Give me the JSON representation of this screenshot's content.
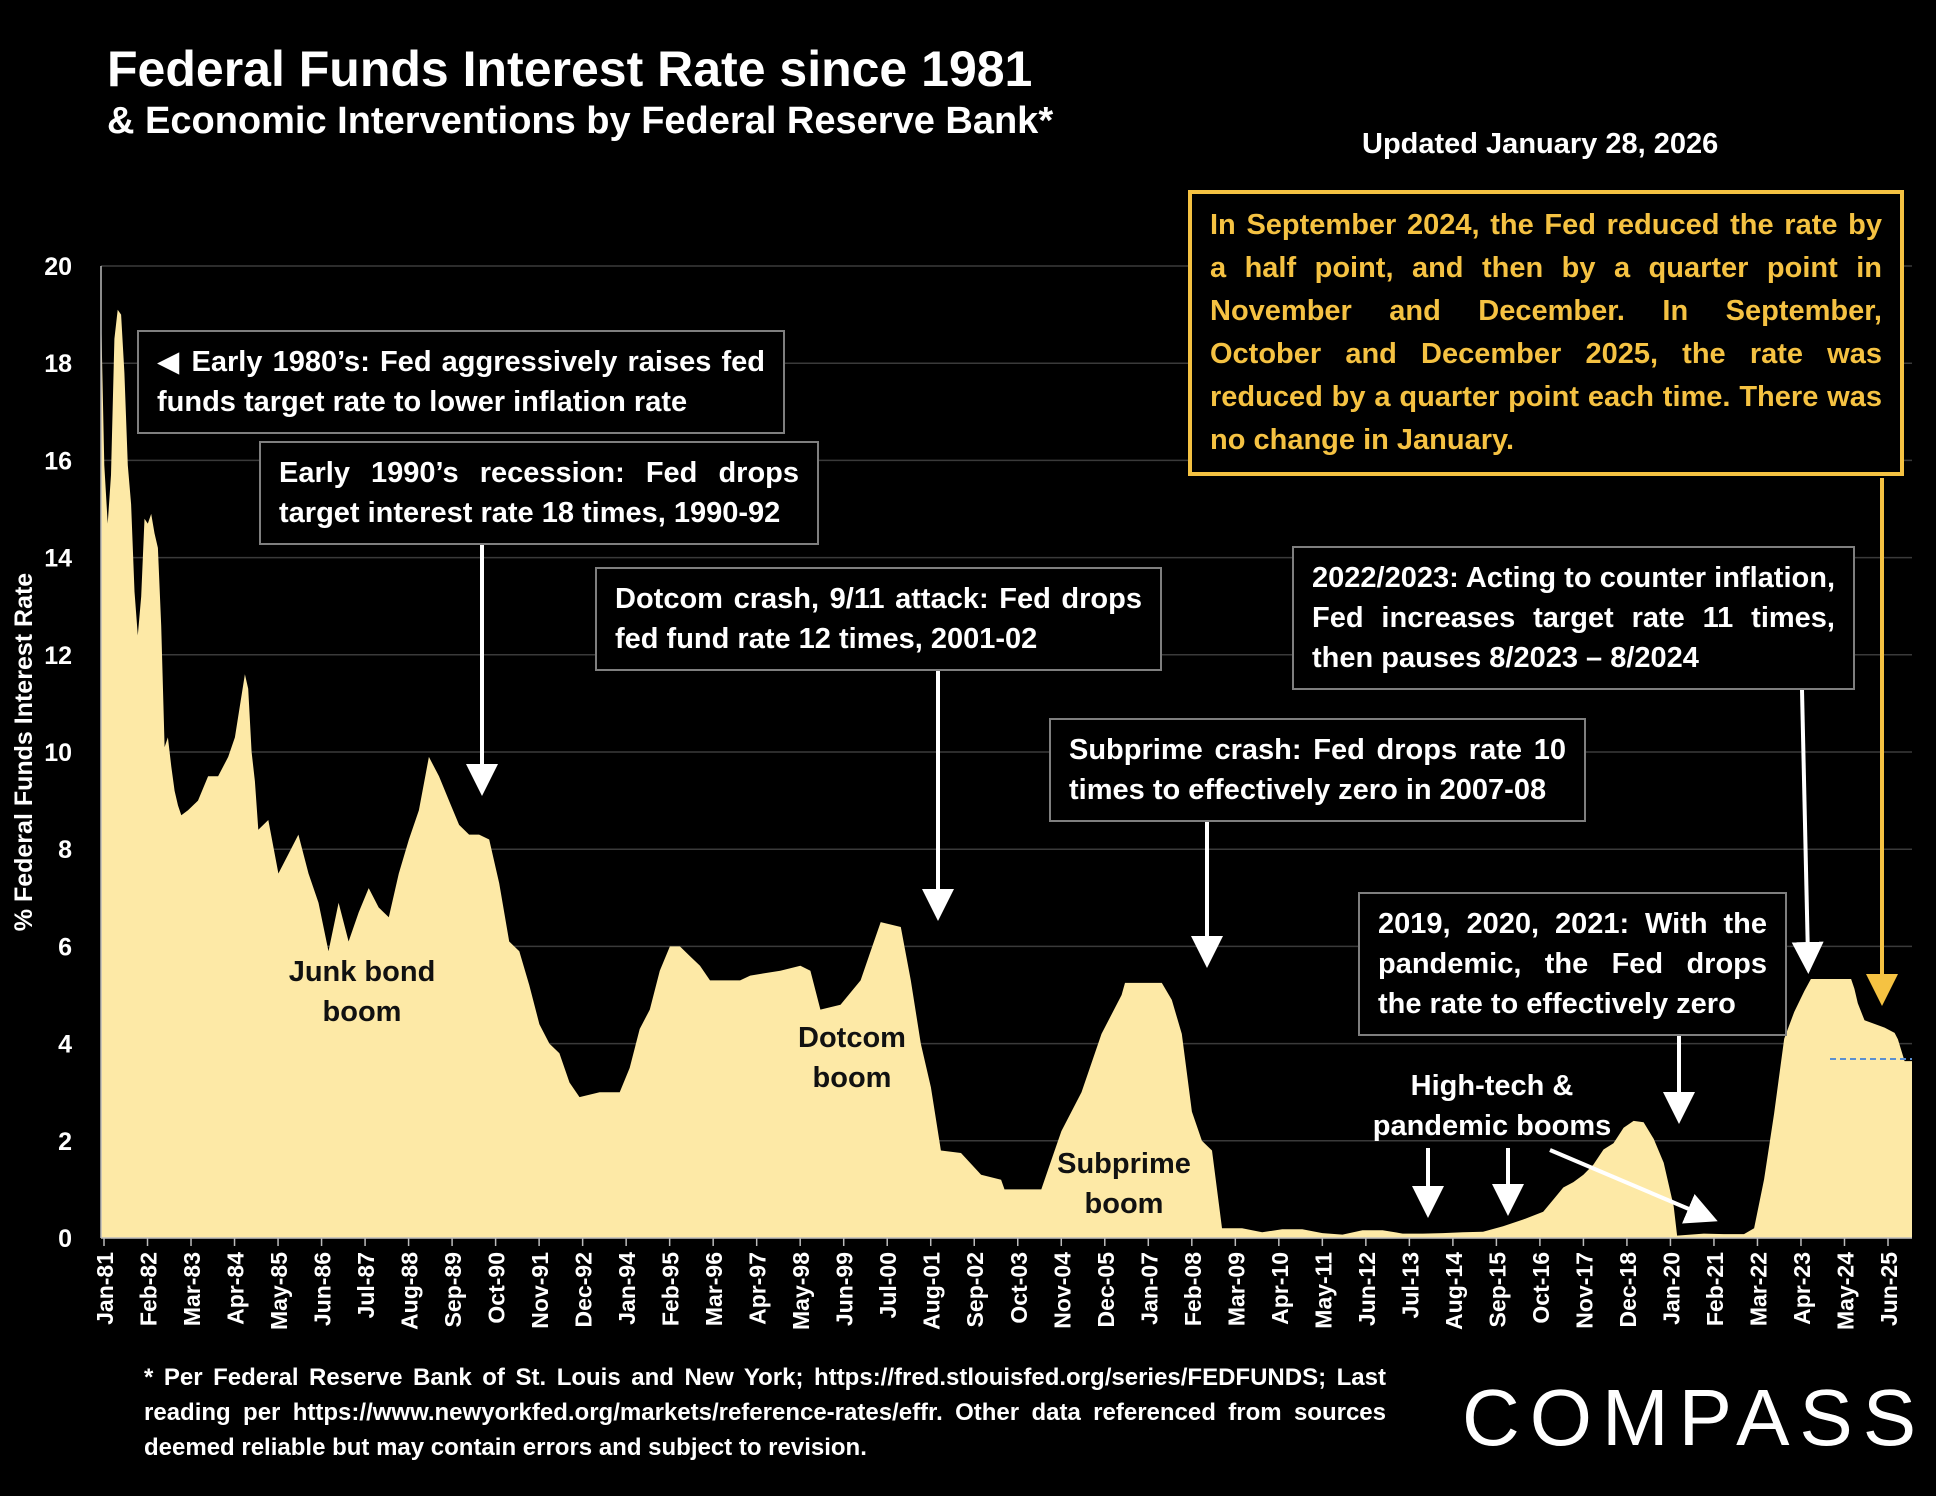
{
  "title": "Federal Funds Interest Rate since 1981",
  "subtitle": "& Economic Interventions by Federal Reserve Bank*",
  "updated": "Updated January 28, 2026",
  "ylabel": "% Federal Funds Interest Rate",
  "callouts": {
    "early80s": "◀ Early 1980’s: Fed aggressively raises fed funds target rate to lower inflation rate",
    "early90s": "Early 1990’s recession: Fed drops target interest rate 18 times, 1990-92",
    "dotcom": "Dotcom crash, 9/11 attack: Fed drops fed fund rate 12 times, 2001-02",
    "subprime": "Subprime crash: Fed drops rate 10 times to effectively zero in 2007-08",
    "y2022": "2022/2023: Acting to counter inflation, Fed increases target rate 11 times, then pauses 8/2023 – 8/2024",
    "pandemic": "2019, 2020, 2021: With the pandemic, the Fed drops the  rate to effectively zero",
    "sep2024": "In September 2024, the Fed reduced the rate by a half point, and then by a quarter point in November and December. In September, October and December 2025, the rate was reduced by a quarter point each time. There was no change in January."
  },
  "booms": {
    "junk_1": "Junk bond",
    "junk_2": "boom",
    "dotcom_1": "Dotcom",
    "dotcom_2": "boom",
    "subprime_1": "Subprime",
    "subprime_2": "boom",
    "hightech_1": "High-tech &",
    "hightech_2": "pandemic booms"
  },
  "footnote": "* Per Federal Reserve Bank of St. Louis and New York; https://fred.stlouisfed.org/series/FEDFUNDS; Last reading per https://www.newyorkfed.org/markets/reference-rates/effr. Other data referenced from sources deemed reliable but may contain errors and subject to revision.",
  "logo": "COMPASS",
  "colors": {
    "area": "#fde9a6",
    "highlight": "#f5c242",
    "grid": "#3a3a3a",
    "dashed": "#5b8fd0"
  },
  "chart_data": {
    "type": "area",
    "ylabel": "% Federal Funds Interest Rate",
    "ylim": [
      0,
      20
    ],
    "yticks": [
      0,
      2,
      4,
      6,
      8,
      10,
      12,
      14,
      16,
      18,
      20
    ],
    "xticks": [
      "Jan-81",
      "Feb-82",
      "Mar-83",
      "Apr-84",
      "May-85",
      "Jun-86",
      "Jul-87",
      "Aug-88",
      "Sep-89",
      "Oct-90",
      "Nov-91",
      "Dec-92",
      "Jan-94",
      "Feb-95",
      "Mar-96",
      "Apr-97",
      "May-98",
      "Jun-99",
      "Jul-00",
      "Aug-01",
      "Sep-02",
      "Oct-03",
      "Nov-04",
      "Dec-05",
      "Jan-07",
      "Feb-08",
      "Mar-09",
      "Apr-10",
      "May-11",
      "Jun-12",
      "Jul-13",
      "Aug-14",
      "Sep-15",
      "Oct-16",
      "Nov-17",
      "Dec-18",
      "Jan-20",
      "Feb-21",
      "Mar-22",
      "Apr-23",
      "May-24",
      "Jun-25"
    ],
    "grid": true,
    "series": [
      {
        "points": [
          [
            "1981-01",
            19.1
          ],
          [
            "1981-02",
            15.9
          ],
          [
            "1981-03",
            14.7
          ],
          [
            "1981-04",
            15.7
          ],
          [
            "1981-05",
            18.5
          ],
          [
            "1981-06",
            19.1
          ],
          [
            "1981-07",
            19.0
          ],
          [
            "1981-08",
            17.8
          ],
          [
            "1981-09",
            15.9
          ],
          [
            "1981-10",
            15.1
          ],
          [
            "1981-11",
            13.3
          ],
          [
            "1981-12",
            12.4
          ],
          [
            "1982-01",
            13.2
          ],
          [
            "1982-02",
            14.8
          ],
          [
            "1982-03",
            14.7
          ],
          [
            "1982-04",
            14.9
          ],
          [
            "1982-05",
            14.5
          ],
          [
            "1982-06",
            14.2
          ],
          [
            "1982-07",
            12.6
          ],
          [
            "1982-08",
            10.1
          ],
          [
            "1982-09",
            10.3
          ],
          [
            "1982-10",
            9.7
          ],
          [
            "1982-11",
            9.2
          ],
          [
            "1982-12",
            8.9
          ],
          [
            "1983-01",
            8.7
          ],
          [
            "1983-03",
            8.8
          ],
          [
            "1983-06",
            9.0
          ],
          [
            "1983-09",
            9.5
          ],
          [
            "1983-12",
            9.5
          ],
          [
            "1984-03",
            9.9
          ],
          [
            "1984-05",
            10.3
          ],
          [
            "1984-08",
            11.6
          ],
          [
            "1984-09",
            11.3
          ],
          [
            "1984-10",
            10.0
          ],
          [
            "1984-11",
            9.4
          ],
          [
            "1984-12",
            8.4
          ],
          [
            "1985-03",
            8.6
          ],
          [
            "1985-06",
            7.5
          ],
          [
            "1985-09",
            7.9
          ],
          [
            "1985-12",
            8.3
          ],
          [
            "1986-03",
            7.5
          ],
          [
            "1986-06",
            6.9
          ],
          [
            "1986-09",
            5.9
          ],
          [
            "1986-12",
            6.9
          ],
          [
            "1987-03",
            6.1
          ],
          [
            "1987-06",
            6.7
          ],
          [
            "1987-09",
            7.2
          ],
          [
            "1987-12",
            6.8
          ],
          [
            "1988-03",
            6.6
          ],
          [
            "1988-06",
            7.5
          ],
          [
            "1988-09",
            8.2
          ],
          [
            "1988-12",
            8.8
          ],
          [
            "1989-03",
            9.9
          ],
          [
            "1989-06",
            9.5
          ],
          [
            "1989-09",
            9.0
          ],
          [
            "1989-12",
            8.5
          ],
          [
            "1990-03",
            8.3
          ],
          [
            "1990-06",
            8.3
          ],
          [
            "1990-09",
            8.2
          ],
          [
            "1990-12",
            7.3
          ],
          [
            "1991-03",
            6.1
          ],
          [
            "1991-06",
            5.9
          ],
          [
            "1991-09",
            5.2
          ],
          [
            "1991-12",
            4.4
          ],
          [
            "1992-03",
            4.0
          ],
          [
            "1992-06",
            3.8
          ],
          [
            "1992-09",
            3.2
          ],
          [
            "1992-12",
            2.9
          ],
          [
            "1993-06",
            3.0
          ],
          [
            "1993-12",
            3.0
          ],
          [
            "1994-03",
            3.5
          ],
          [
            "1994-06",
            4.3
          ],
          [
            "1994-09",
            4.7
          ],
          [
            "1994-12",
            5.5
          ],
          [
            "1995-03",
            6.0
          ],
          [
            "1995-06",
            6.0
          ],
          [
            "1995-09",
            5.8
          ],
          [
            "1995-12",
            5.6
          ],
          [
            "1996-03",
            5.3
          ],
          [
            "1996-12",
            5.3
          ],
          [
            "1997-03",
            5.4
          ],
          [
            "1997-12",
            5.5
          ],
          [
            "1998-06",
            5.6
          ],
          [
            "1998-09",
            5.5
          ],
          [
            "1998-12",
            4.7
          ],
          [
            "1999-06",
            4.8
          ],
          [
            "1999-12",
            5.3
          ],
          [
            "2000-03",
            5.9
          ],
          [
            "2000-06",
            6.5
          ],
          [
            "2000-12",
            6.4
          ],
          [
            "2001-03",
            5.3
          ],
          [
            "2001-06",
            4.0
          ],
          [
            "2001-09",
            3.1
          ],
          [
            "2001-12",
            1.8
          ],
          [
            "2002-06",
            1.75
          ],
          [
            "2002-12",
            1.3
          ],
          [
            "2003-06",
            1.2
          ],
          [
            "2003-07",
            1.0
          ],
          [
            "2003-12",
            1.0
          ],
          [
            "2004-06",
            1.0
          ],
          [
            "2004-09",
            1.6
          ],
          [
            "2004-12",
            2.2
          ],
          [
            "2005-06",
            3.0
          ],
          [
            "2005-12",
            4.2
          ],
          [
            "2006-06",
            5.0
          ],
          [
            "2006-07",
            5.25
          ],
          [
            "2006-12",
            5.25
          ],
          [
            "2007-06",
            5.25
          ],
          [
            "2007-09",
            4.9
          ],
          [
            "2007-12",
            4.2
          ],
          [
            "2008-03",
            2.6
          ],
          [
            "2008-06",
            2.0
          ],
          [
            "2008-09",
            1.8
          ],
          [
            "2008-12",
            0.2
          ],
          [
            "2009-06",
            0.2
          ],
          [
            "2009-12",
            0.12
          ],
          [
            "2010-06",
            0.18
          ],
          [
            "2010-12",
            0.18
          ],
          [
            "2011-06",
            0.1
          ],
          [
            "2011-12",
            0.07
          ],
          [
            "2012-06",
            0.16
          ],
          [
            "2012-12",
            0.16
          ],
          [
            "2013-06",
            0.09
          ],
          [
            "2013-12",
            0.09
          ],
          [
            "2014-06",
            0.1
          ],
          [
            "2014-12",
            0.12
          ],
          [
            "2015-06",
            0.13
          ],
          [
            "2015-12",
            0.24
          ],
          [
            "2016-06",
            0.38
          ],
          [
            "2016-12",
            0.54
          ],
          [
            "2017-03",
            0.79
          ],
          [
            "2017-06",
            1.04
          ],
          [
            "2017-09",
            1.15
          ],
          [
            "2017-12",
            1.3
          ],
          [
            "2018-03",
            1.51
          ],
          [
            "2018-06",
            1.82
          ],
          [
            "2018-09",
            1.95
          ],
          [
            "2018-12",
            2.27
          ],
          [
            "2019-03",
            2.41
          ],
          [
            "2019-06",
            2.38
          ],
          [
            "2019-09",
            2.04
          ],
          [
            "2019-12",
            1.55
          ],
          [
            "2020-03",
            0.65
          ],
          [
            "2020-04",
            0.05
          ],
          [
            "2020-12",
            0.09
          ],
          [
            "2021-06",
            0.08
          ],
          [
            "2021-12",
            0.08
          ],
          [
            "2022-03",
            0.2
          ],
          [
            "2022-06",
            1.21
          ],
          [
            "2022-09",
            2.56
          ],
          [
            "2022-12",
            4.1
          ],
          [
            "2023-03",
            4.65
          ],
          [
            "2023-06",
            5.08
          ],
          [
            "2023-08",
            5.33
          ],
          [
            "2023-12",
            5.33
          ],
          [
            "2024-06",
            5.33
          ],
          [
            "2024-08",
            5.33
          ],
          [
            "2024-09",
            5.13
          ],
          [
            "2024-10",
            4.83
          ],
          [
            "2024-12",
            4.48
          ],
          [
            "2025-06",
            4.33
          ],
          [
            "2025-09",
            4.22
          ],
          [
            "2025-10",
            4.09
          ],
          [
            "2025-12",
            3.64
          ],
          [
            "2026-01",
            3.64
          ]
        ]
      }
    ]
  }
}
